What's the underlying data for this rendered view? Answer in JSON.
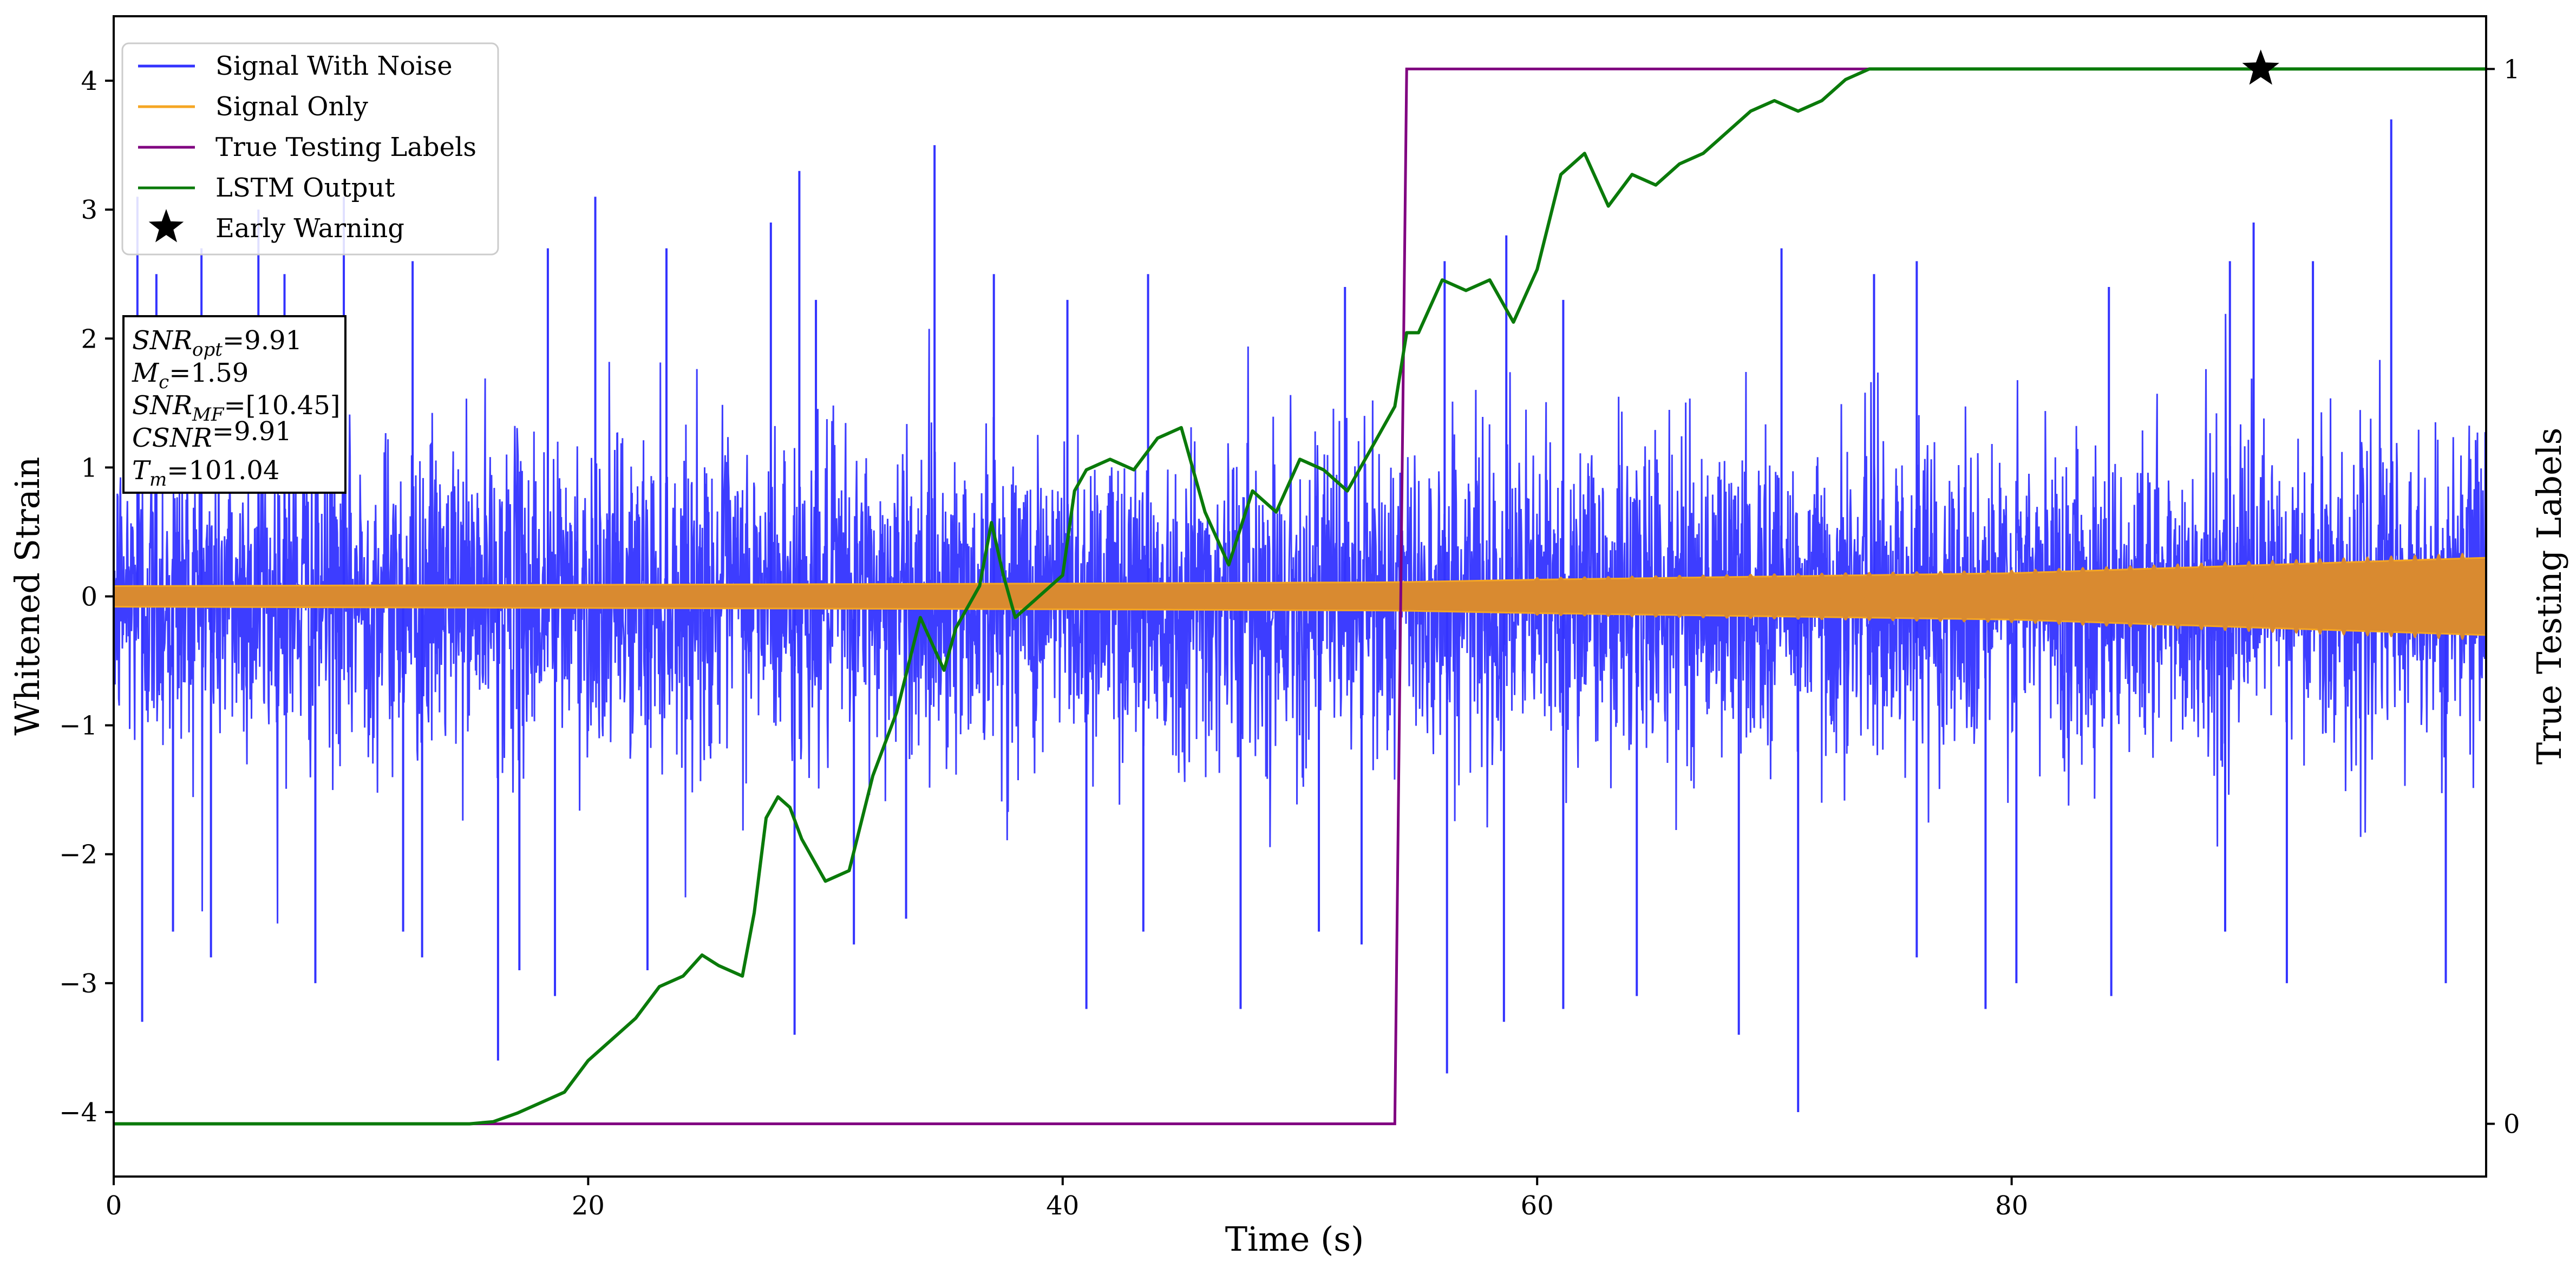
{
  "chart_data": {
    "type": "line",
    "xlabel": "Time (s)",
    "ylabel_left": "Whitened Strain",
    "ylabel_right": "True Testing Labels",
    "xlim": [
      0,
      100
    ],
    "ylim_left": [
      -4.5,
      4.5
    ],
    "ylim_right": [
      -0.05,
      1.05
    ],
    "x_ticks": [
      0,
      20,
      40,
      60,
      80
    ],
    "x_tick_labels": [
      "0",
      "20",
      "40",
      "60",
      "80"
    ],
    "y_left_ticks": [
      -4,
      -3,
      -2,
      -1,
      0,
      1,
      2,
      3,
      4
    ],
    "y_left_tick_labels": [
      "−4",
      "−3",
      "−2",
      "−1",
      "0",
      "1",
      "2",
      "3",
      "4"
    ],
    "y_right_ticks": [
      0,
      1
    ],
    "y_right_tick_labels": [
      "0",
      "1"
    ],
    "grid": false,
    "legend_position": "upper-left",
    "series": [
      {
        "name": "Signal With Noise",
        "color": "#3333ff",
        "axis": "left",
        "kind": "dense noise",
        "typical_amplitude": 1.1,
        "peak_amplitude": 3.8,
        "peaks": [
          [
            1.0,
            3.1
          ],
          [
            1.8,
            2.5
          ],
          [
            3.7,
            2.7
          ],
          [
            6.1,
            3.0
          ],
          [
            7.2,
            2.5
          ],
          [
            9.7,
            3.1
          ],
          [
            12.6,
            2.6
          ],
          [
            18.3,
            2.7
          ],
          [
            20.3,
            3.1
          ],
          [
            23.3,
            2.7
          ],
          [
            27.7,
            2.9
          ],
          [
            28.9,
            3.3
          ],
          [
            29.6,
            2.3
          ],
          [
            34.6,
            3.5
          ],
          [
            37.1,
            2.5
          ],
          [
            40.2,
            2.3
          ],
          [
            43.6,
            2.5
          ],
          [
            51.9,
            2.4
          ],
          [
            56.1,
            2.6
          ],
          [
            58.7,
            2.8
          ],
          [
            61.1,
            2.3
          ],
          [
            70.3,
            2.7
          ],
          [
            74.2,
            2.5
          ],
          [
            76.0,
            2.6
          ],
          [
            84.1,
            2.4
          ],
          [
            89.2,
            2.6
          ],
          [
            90.2,
            2.9
          ],
          [
            92.7,
            2.6
          ],
          [
            96.0,
            3.7
          ],
          [
            1.2,
            -3.3
          ],
          [
            2.5,
            -2.6
          ],
          [
            4.1,
            -2.8
          ],
          [
            8.5,
            -3.0
          ],
          [
            12.2,
            -2.6
          ],
          [
            13.0,
            -2.8
          ],
          [
            16.2,
            -3.6
          ],
          [
            17.1,
            -2.9
          ],
          [
            18.6,
            -3.1
          ],
          [
            22.5,
            -2.9
          ],
          [
            28.7,
            -3.4
          ],
          [
            31.2,
            -2.7
          ],
          [
            33.4,
            -2.5
          ],
          [
            41.0,
            -3.2
          ],
          [
            43.4,
            -2.6
          ],
          [
            47.5,
            -3.2
          ],
          [
            50.8,
            -2.6
          ],
          [
            52.6,
            -2.7
          ],
          [
            56.2,
            -3.7
          ],
          [
            58.6,
            -3.3
          ],
          [
            61.1,
            -3.2
          ],
          [
            64.2,
            -3.1
          ],
          [
            68.5,
            -3.4
          ],
          [
            71.0,
            -4.0
          ],
          [
            76.0,
            -2.8
          ],
          [
            78.9,
            -3.2
          ],
          [
            80.2,
            -3.0
          ],
          [
            84.2,
            -3.1
          ],
          [
            89.0,
            -2.6
          ],
          [
            91.6,
            -3.0
          ],
          [
            98.3,
            -3.0
          ]
        ]
      },
      {
        "name": "Signal Only",
        "color": "#f5a623",
        "axis": "left",
        "kind": "chirp envelope",
        "envelope_x": [
          0,
          20,
          40,
          54,
          60,
          80,
          100
        ],
        "envelope_y": [
          0.08,
          0.09,
          0.1,
          0.11,
          0.13,
          0.18,
          0.3
        ]
      },
      {
        "name": "True Testing Labels",
        "color": "#800080",
        "axis": "right",
        "x": [
          0,
          54.0,
          54.5,
          100
        ],
        "y": [
          0,
          0,
          1,
          1
        ]
      },
      {
        "name": "LSTM Output",
        "color": "#0a7a0a",
        "axis": "right",
        "x": [
          0,
          15,
          16,
          17,
          18,
          19,
          20,
          21,
          22,
          23,
          24,
          24.8,
          25.5,
          26.5,
          27,
          27.5,
          28,
          28.5,
          29,
          30,
          31,
          32,
          33,
          34,
          35,
          35.5,
          36,
          36.5,
          37,
          37.5,
          38,
          39,
          40,
          40.5,
          41,
          42,
          43,
          44,
          45,
          46,
          47,
          48,
          49,
          50,
          51,
          52,
          53,
          54,
          54.5,
          55,
          56,
          57,
          58,
          59,
          60,
          61,
          62,
          63,
          64,
          65,
          66,
          67,
          68,
          69,
          70,
          71,
          72,
          73,
          74,
          75,
          76,
          78,
          80,
          85,
          90,
          100
        ],
        "y": [
          0,
          0,
          0.002,
          0.01,
          0.02,
          0.03,
          0.06,
          0.08,
          0.1,
          0.13,
          0.14,
          0.16,
          0.15,
          0.14,
          0.2,
          0.29,
          0.31,
          0.3,
          0.27,
          0.23,
          0.24,
          0.33,
          0.39,
          0.48,
          0.43,
          0.47,
          0.49,
          0.51,
          0.57,
          0.52,
          0.48,
          0.5,
          0.52,
          0.6,
          0.62,
          0.63,
          0.62,
          0.65,
          0.66,
          0.58,
          0.53,
          0.6,
          0.58,
          0.63,
          0.62,
          0.6,
          0.64,
          0.68,
          0.75,
          0.75,
          0.8,
          0.79,
          0.8,
          0.76,
          0.81,
          0.9,
          0.92,
          0.87,
          0.9,
          0.89,
          0.91,
          0.92,
          0.94,
          0.96,
          0.97,
          0.96,
          0.97,
          0.99,
          1.0,
          1.0,
          1.0,
          1.0,
          1.0,
          1.0,
          1.0,
          1.0
        ]
      },
      {
        "name": "Early Warning",
        "color": "#000000",
        "axis": "right",
        "marker": "star",
        "x": [
          90.5
        ],
        "y": [
          1.0
        ]
      }
    ]
  },
  "annotation": {
    "lines": [
      {
        "sym": "SNR",
        "sub": "opt",
        "val": "=9.91"
      },
      {
        "sym": "M",
        "sub": "c",
        "val": "=1.59"
      },
      {
        "sym": "SNR",
        "sub": "MF",
        "val": "=[10.45]"
      },
      {
        "sym": "CSNR",
        "sub": "",
        "val": "=9.91"
      },
      {
        "sym": "T",
        "sub": "m",
        "val": "=101.04"
      }
    ]
  }
}
